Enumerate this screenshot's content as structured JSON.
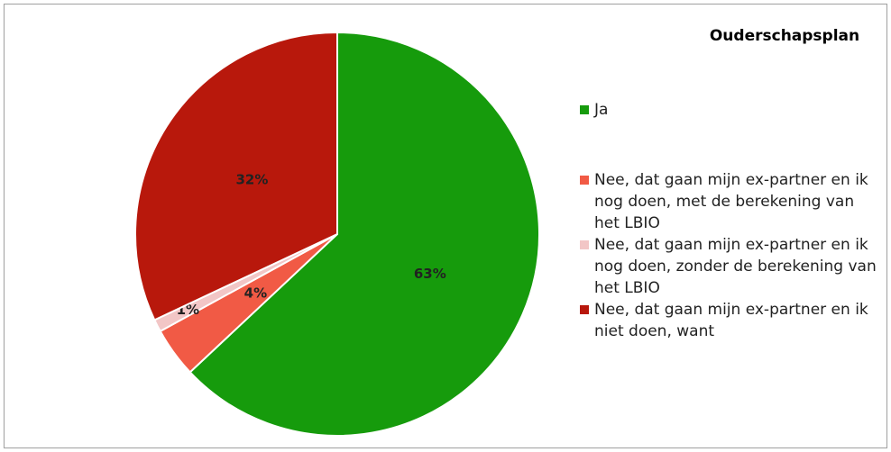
{
  "chart_data": {
    "type": "pie",
    "title": "Ouderschapsplan",
    "categories": [
      "Ja",
      "Nee, dat gaan mijn ex-partner en ik nog doen, met de berekening van het LBIO",
      "Nee, dat gaan mijn ex-partner en ik nog doen, zonder de berekening van het LBIO",
      "Nee, dat gaan mijn ex-partner en ik niet doen, want"
    ],
    "values": [
      63,
      4,
      1,
      32
    ],
    "value_labels": [
      "63%",
      "4%",
      "1%",
      "32%"
    ],
    "colors": [
      "#169b0c",
      "#f15a45",
      "#f2c6c6",
      "#b8180c"
    ],
    "legend": "right"
  }
}
